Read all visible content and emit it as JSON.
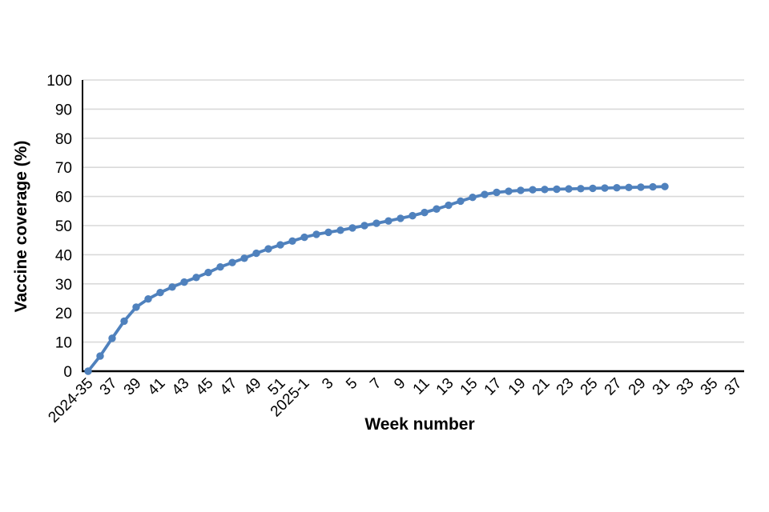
{
  "chart_data": {
    "type": "line",
    "title": "",
    "xlabel": "Week number",
    "ylabel": "Vaccine coverage (%)",
    "ylim": [
      0,
      100
    ],
    "ytick_interval": 10,
    "y_tick_labels": [
      "0",
      "10",
      "20",
      "30",
      "40",
      "50",
      "60",
      "70",
      "80",
      "90",
      "100"
    ],
    "x_tick_labels": [
      "2024-35",
      "37",
      "39",
      "41",
      "43",
      "45",
      "47",
      "49",
      "51",
      "2025-1",
      "3",
      "5",
      "7",
      "9",
      "11",
      "13",
      "15",
      "17",
      "19",
      "21",
      "23",
      "25",
      "27",
      "29",
      "31",
      "33",
      "35",
      "37"
    ],
    "grid": "horizontal-only",
    "legend": "none",
    "line_color": "#4F81BD",
    "grid_color": "#D9D9D9",
    "axis_color": "#000000",
    "background_color": "#FFFFFF",
    "series": [
      {
        "name": "Vaccine coverage (%)",
        "x": [
          "2024-35",
          "2024-36",
          "2024-37",
          "2024-38",
          "2024-39",
          "2024-40",
          "2024-41",
          "2024-42",
          "2024-43",
          "2024-44",
          "2024-45",
          "2024-46",
          "2024-47",
          "2024-48",
          "2024-49",
          "2024-50",
          "2024-51",
          "2024-52",
          "2025-1",
          "2025-2",
          "2025-3",
          "2025-4",
          "2025-5",
          "2025-6",
          "2025-7",
          "2025-8",
          "2025-9",
          "2025-10",
          "2025-11",
          "2025-12",
          "2025-13",
          "2025-14",
          "2025-15",
          "2025-16",
          "2025-17",
          "2025-18",
          "2025-19",
          "2025-20",
          "2025-21",
          "2025-22",
          "2025-23",
          "2025-24",
          "2025-25",
          "2025-26",
          "2025-27",
          "2025-28",
          "2025-29",
          "2025-30",
          "2025-31"
        ],
        "values": [
          0,
          5.2,
          11.3,
          17.2,
          22,
          24.8,
          27,
          28.9,
          30.6,
          32.2,
          33.9,
          35.8,
          37.3,
          38.8,
          40.5,
          42,
          43.4,
          44.7,
          46,
          47,
          47.7,
          48.4,
          49.2,
          50,
          50.8,
          51.6,
          52.5,
          53.4,
          54.5,
          55.7,
          57,
          58.4,
          59.7,
          60.7,
          61.4,
          61.8,
          62.1,
          62.3,
          62.4,
          62.5,
          62.6,
          62.7,
          62.8,
          62.9,
          63,
          63.1,
          63.2,
          63.3,
          63.4
        ]
      }
    ]
  }
}
